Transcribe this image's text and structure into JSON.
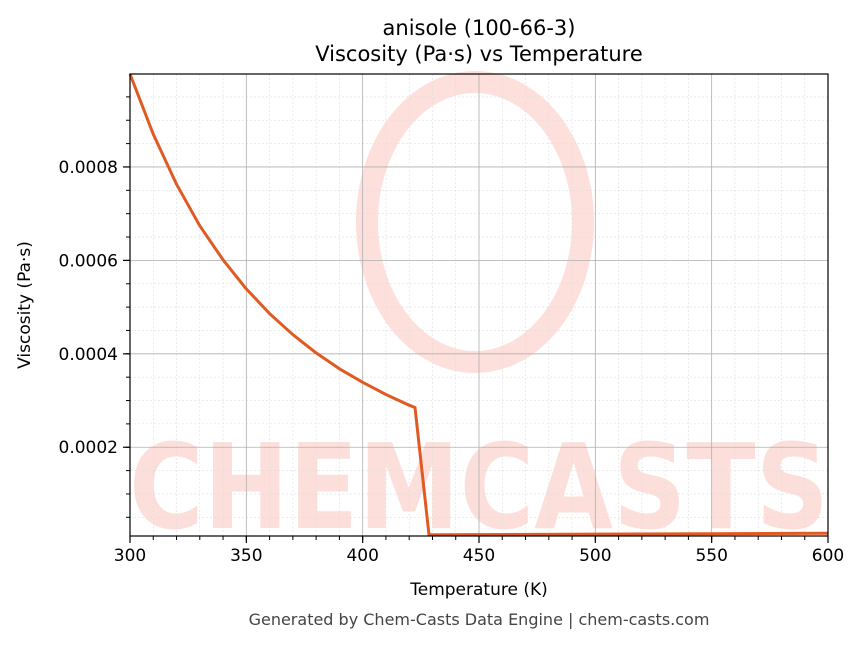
{
  "chart_data": {
    "type": "line",
    "title": "anisole (100-66-3)",
    "subtitle": "Viscosity (Pa·s) vs Temperature",
    "xlabel": "Temperature (K)",
    "ylabel": "Viscosity (Pa·s)",
    "xlim": [
      300,
      600
    ],
    "ylim": [
      1e-05,
      0.000999
    ],
    "xticks": [
      300,
      350,
      400,
      450,
      500,
      550,
      600
    ],
    "xtick_labels": [
      "300",
      "350",
      "400",
      "450",
      "500",
      "550",
      "600"
    ],
    "yticks": [
      0.0002,
      0.0004,
      0.0006,
      0.0008
    ],
    "ytick_labels": [
      "0.0002",
      "0.0004",
      "0.0006",
      "0.0008"
    ],
    "grid": true,
    "series": [
      {
        "name": "Viscosity",
        "color": "#e05a24",
        "x": [
          300,
          310,
          320,
          330,
          340,
          350,
          360,
          370,
          380,
          390,
          400,
          410,
          420,
          422.5,
          428.5,
          450,
          500,
          550,
          600
        ],
        "y": [
          0.001,
          0.00087,
          0.000763,
          0.000674,
          0.000601,
          0.000539,
          0.000486,
          0.000441,
          0.000402,
          0.000368,
          0.000339,
          0.000313,
          0.00029,
          0.000285,
          1.25e-05,
          1.3e-05,
          1.4e-05,
          1.5e-05,
          1.6e-05
        ]
      }
    ],
    "watermark": "CHEMCASTS",
    "footer": "Generated by Chem-Casts Data Engine | chem-casts.com"
  }
}
